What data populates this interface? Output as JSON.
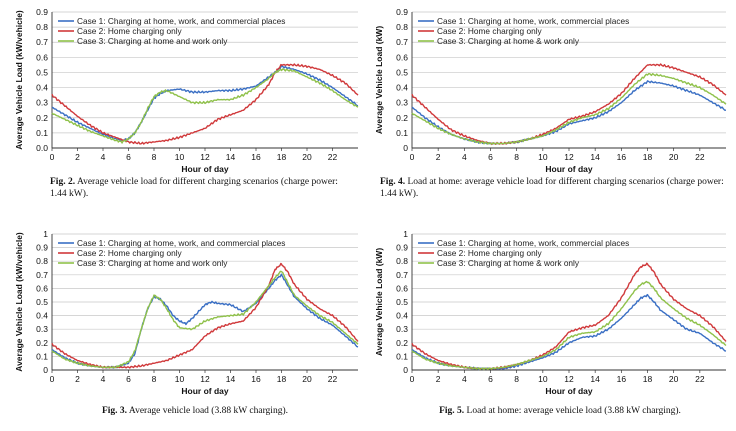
{
  "colors": {
    "case1": "#3a6fc4",
    "case2": "#d0393b",
    "case3": "#8fc14a",
    "grid": "#c8c8c8"
  },
  "figures": [
    {
      "caption_label": "Fig. 2.",
      "caption_text": "Average vehicle load for different charging scenarios (charge power: 1.44 kW).",
      "chart_data": {
        "type": "line",
        "xlabel": "Hour of day",
        "ylabel": "Average Vehicle Load (kW/vehicle)",
        "xlim": [
          0,
          24
        ],
        "ylim": [
          0,
          0.9
        ],
        "xticks": [
          "0",
          "2",
          "4",
          "6",
          "8",
          "10",
          "12",
          "14",
          "16",
          "18",
          "20",
          "22"
        ],
        "yticks": [
          "0.0",
          "0.1",
          "0.2",
          "0.3",
          "0.4",
          "0.5",
          "0.6",
          "0.7",
          "0.8",
          "0.9"
        ],
        "grid": true,
        "legend": "top-left",
        "series": [
          {
            "name": "Case 1: Charging at home, work, and commercial places",
            "x": [
              0,
              1,
              2,
              3,
              4,
              5,
              5.5,
              6,
              6.5,
              7,
              7.5,
              8,
              8.5,
              9,
              10,
              11,
              12,
              13,
              14,
              15,
              16,
              17,
              17.5,
              18,
              19,
              20,
              21,
              22,
              23,
              24
            ],
            "y": [
              0.27,
              0.22,
              0.17,
              0.13,
              0.09,
              0.06,
              0.05,
              0.06,
              0.1,
              0.17,
              0.25,
              0.33,
              0.36,
              0.38,
              0.39,
              0.37,
              0.37,
              0.38,
              0.38,
              0.39,
              0.41,
              0.47,
              0.5,
              0.54,
              0.52,
              0.49,
              0.45,
              0.4,
              0.34,
              0.28
            ]
          },
          {
            "name": "Case 2: Home charging only",
            "x": [
              0,
              1,
              2,
              3,
              4,
              5,
              6,
              7,
              8,
              9,
              10,
              11,
              12,
              13,
              14,
              15,
              16,
              17,
              17.5,
              18,
              19,
              20,
              21,
              22,
              23,
              24
            ],
            "y": [
              0.35,
              0.28,
              0.21,
              0.15,
              0.1,
              0.07,
              0.04,
              0.03,
              0.04,
              0.05,
              0.07,
              0.1,
              0.13,
              0.19,
              0.22,
              0.25,
              0.32,
              0.42,
              0.5,
              0.55,
              0.55,
              0.54,
              0.52,
              0.48,
              0.43,
              0.35
            ]
          },
          {
            "name": "Case 3: Charging at home and work only",
            "x": [
              0,
              1,
              2,
              3,
              4,
              5,
              5.5,
              6,
              6.5,
              7,
              7.5,
              8,
              8.5,
              9,
              10,
              11,
              12,
              13,
              14,
              15,
              16,
              17,
              17.5,
              18,
              19,
              20,
              21,
              22,
              23,
              24
            ],
            "y": [
              0.23,
              0.19,
              0.15,
              0.11,
              0.08,
              0.05,
              0.04,
              0.06,
              0.1,
              0.17,
              0.26,
              0.34,
              0.37,
              0.38,
              0.34,
              0.3,
              0.3,
              0.32,
              0.32,
              0.35,
              0.4,
              0.46,
              0.5,
              0.52,
              0.51,
              0.47,
              0.43,
              0.38,
              0.32,
              0.27
            ]
          }
        ]
      }
    },
    {
      "caption_label": "Fig. 4.",
      "caption_text": "Load at home: average vehicle load for different charging scenarios (charge power: 1.44 kW).",
      "chart_data": {
        "type": "line",
        "xlabel": "Hour of day",
        "ylabel": "Average Vehicle Load (kW)",
        "xlim": [
          0,
          24
        ],
        "ylim": [
          0,
          0.9
        ],
        "xticks": [
          "0",
          "2",
          "4",
          "6",
          "8",
          "10",
          "12",
          "14",
          "16",
          "18",
          "20",
          "22"
        ],
        "yticks": [
          "0",
          "0.1",
          "0.2",
          "0.3",
          "0.4",
          "0.5",
          "0.6",
          "0.7",
          "0.8",
          "0.9"
        ],
        "grid": true,
        "legend": "top-left",
        "series": [
          {
            "name": "Case 1: Charging at home, work, commercial places",
            "x": [
              0,
              1,
              2,
              3,
              4,
              5,
              6,
              7,
              8,
              9,
              10,
              11,
              12,
              13,
              14,
              15,
              16,
              17,
              18,
              19,
              20,
              21,
              22,
              23,
              24
            ],
            "y": [
              0.27,
              0.2,
              0.14,
              0.09,
              0.06,
              0.04,
              0.03,
              0.03,
              0.04,
              0.06,
              0.08,
              0.11,
              0.16,
              0.18,
              0.2,
              0.24,
              0.3,
              0.38,
              0.44,
              0.43,
              0.41,
              0.38,
              0.35,
              0.3,
              0.25
            ]
          },
          {
            "name": "Case 2: Home charging only",
            "x": [
              0,
              1,
              2,
              3,
              4,
              5,
              6,
              7,
              8,
              9,
              10,
              11,
              12,
              13,
              14,
              15,
              16,
              17,
              18,
              19,
              20,
              21,
              22,
              23,
              24
            ],
            "y": [
              0.35,
              0.27,
              0.19,
              0.12,
              0.08,
              0.05,
              0.03,
              0.03,
              0.04,
              0.06,
              0.09,
              0.13,
              0.19,
              0.21,
              0.24,
              0.29,
              0.36,
              0.46,
              0.55,
              0.55,
              0.53,
              0.5,
              0.47,
              0.42,
              0.35
            ]
          },
          {
            "name": "Case 3: Charging at home & work only",
            "x": [
              0,
              1,
              2,
              3,
              4,
              5,
              6,
              7,
              8,
              9,
              10,
              11,
              12,
              13,
              14,
              15,
              16,
              17,
              18,
              19,
              20,
              21,
              22,
              23,
              24
            ],
            "y": [
              0.23,
              0.18,
              0.13,
              0.09,
              0.06,
              0.04,
              0.03,
              0.03,
              0.04,
              0.06,
              0.08,
              0.12,
              0.17,
              0.2,
              0.22,
              0.26,
              0.33,
              0.42,
              0.49,
              0.48,
              0.46,
              0.43,
              0.4,
              0.35,
              0.29
            ]
          }
        ]
      }
    },
    {
      "caption_label": "Fig. 3.",
      "caption_text": "Average vehicle load (3.88 kW charging).",
      "chart_data": {
        "type": "line",
        "xlabel": "Hour of day",
        "ylabel": "Average Vehicle Load (kW/vehicle)",
        "xlim": [
          0,
          24
        ],
        "ylim": [
          0,
          1.0
        ],
        "xticks": [
          "0",
          "2",
          "4",
          "6",
          "8",
          "10",
          "12",
          "14",
          "16",
          "18",
          "20",
          "22"
        ],
        "yticks": [
          "0",
          "0.1",
          "0.2",
          "0.3",
          "0.4",
          "0.5",
          "0.6",
          "0.7",
          "0.8",
          "0.9",
          "1"
        ],
        "grid": true,
        "legend": "top-left",
        "series": [
          {
            "name": "Case 1: Charging at home, work, and commercial places",
            "x": [
              0,
              1,
              2,
              3,
              4,
              5,
              6,
              6.5,
              7,
              7.5,
              8,
              8.5,
              9,
              9.5,
              10,
              10.5,
              11,
              12,
              12.5,
              13,
              14,
              15,
              16,
              17,
              17.5,
              18,
              18.5,
              19,
              20,
              21,
              22,
              23,
              24
            ],
            "y": [
              0.15,
              0.09,
              0.05,
              0.03,
              0.02,
              0.02,
              0.05,
              0.12,
              0.3,
              0.45,
              0.54,
              0.52,
              0.47,
              0.4,
              0.36,
              0.34,
              0.38,
              0.48,
              0.5,
              0.49,
              0.48,
              0.43,
              0.49,
              0.6,
              0.66,
              0.7,
              0.62,
              0.54,
              0.45,
              0.38,
              0.33,
              0.25,
              0.17
            ]
          },
          {
            "name": "Case 2: Home charging only",
            "x": [
              0,
              1,
              2,
              3,
              4,
              5,
              6,
              7,
              8,
              9,
              10,
              11,
              12,
              13,
              14,
              15,
              16,
              17,
              17.5,
              18,
              18.5,
              19,
              20,
              21,
              22,
              23,
              24
            ],
            "y": [
              0.19,
              0.12,
              0.07,
              0.04,
              0.02,
              0.02,
              0.02,
              0.03,
              0.05,
              0.07,
              0.11,
              0.15,
              0.25,
              0.31,
              0.34,
              0.36,
              0.46,
              0.62,
              0.74,
              0.78,
              0.72,
              0.63,
              0.52,
              0.45,
              0.4,
              0.32,
              0.21
            ]
          },
          {
            "name": "Case 3: Charging at home and work only",
            "x": [
              0,
              1,
              2,
              3,
              4,
              5,
              6,
              6.5,
              7,
              7.5,
              8,
              8.5,
              9,
              9.5,
              10,
              11,
              12,
              13,
              14,
              15,
              16,
              17,
              17.5,
              18,
              18.5,
              19,
              20,
              21,
              22,
              23,
              24
            ],
            "y": [
              0.14,
              0.08,
              0.05,
              0.03,
              0.02,
              0.02,
              0.06,
              0.14,
              0.3,
              0.45,
              0.55,
              0.52,
              0.45,
              0.37,
              0.31,
              0.3,
              0.36,
              0.39,
              0.4,
              0.41,
              0.5,
              0.62,
              0.68,
              0.73,
              0.64,
              0.55,
              0.47,
              0.4,
              0.35,
              0.27,
              0.19
            ]
          }
        ]
      }
    },
    {
      "caption_label": "Fig. 5.",
      "caption_text": "Load at home: average vehicle load (3.88 kW charging).",
      "chart_data": {
        "type": "line",
        "xlabel": "Hour of day",
        "ylabel": "Average Vehicle Load (kW)",
        "xlim": [
          0,
          24
        ],
        "ylim": [
          0,
          1.0
        ],
        "xticks": [
          "0",
          "2",
          "4",
          "6",
          "8",
          "10",
          "12",
          "14",
          "16",
          "18",
          "20",
          "22"
        ],
        "yticks": [
          "0",
          "0.1",
          "0.2",
          "0.3",
          "0.4",
          "0.5",
          "0.6",
          "0.7",
          "0.8",
          "0.9",
          "1"
        ],
        "grid": true,
        "legend": "top-left",
        "series": [
          {
            "name": "Case 1: Charging at home, work, commercial places",
            "x": [
              0,
              1,
              2,
              3,
              4,
              5,
              6,
              7,
              8,
              9,
              10,
              11,
              12,
              13,
              14,
              15,
              16,
              17,
              17.5,
              18,
              18.5,
              19,
              20,
              21,
              22,
              23,
              24
            ],
            "y": [
              0.15,
              0.09,
              0.05,
              0.03,
              0.02,
              0.01,
              0.01,
              0.01,
              0.03,
              0.06,
              0.09,
              0.13,
              0.2,
              0.24,
              0.25,
              0.3,
              0.38,
              0.48,
              0.53,
              0.55,
              0.5,
              0.44,
              0.37,
              0.3,
              0.27,
              0.2,
              0.14
            ]
          },
          {
            "name": "Case 2: Home charging only",
            "x": [
              0,
              1,
              2,
              3,
              4,
              5,
              6,
              7,
              8,
              9,
              10,
              11,
              12,
              13,
              14,
              15,
              16,
              17,
              17.5,
              18,
              18.5,
              19,
              20,
              21,
              22,
              23,
              24
            ],
            "y": [
              0.19,
              0.12,
              0.07,
              0.04,
              0.02,
              0.01,
              0.01,
              0.02,
              0.04,
              0.07,
              0.11,
              0.17,
              0.28,
              0.31,
              0.33,
              0.4,
              0.53,
              0.7,
              0.76,
              0.78,
              0.72,
              0.63,
              0.52,
              0.45,
              0.4,
              0.32,
              0.21
            ]
          },
          {
            "name": "Case 3: Charging at home & work only",
            "x": [
              0,
              1,
              2,
              3,
              4,
              5,
              6,
              7,
              8,
              9,
              10,
              11,
              12,
              13,
              14,
              15,
              16,
              17,
              17.5,
              18,
              18.5,
              19,
              20,
              21,
              22,
              23,
              24
            ],
            "y": [
              0.14,
              0.08,
              0.05,
              0.03,
              0.02,
              0.01,
              0.01,
              0.02,
              0.04,
              0.07,
              0.1,
              0.15,
              0.24,
              0.27,
              0.28,
              0.34,
              0.45,
              0.58,
              0.63,
              0.65,
              0.6,
              0.53,
              0.45,
              0.38,
              0.33,
              0.26,
              0.18
            ]
          }
        ]
      }
    }
  ]
}
